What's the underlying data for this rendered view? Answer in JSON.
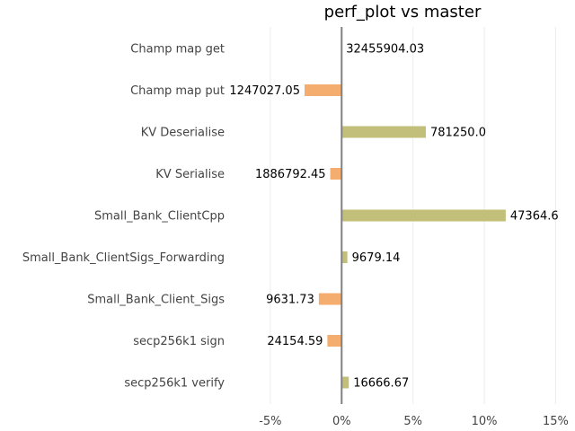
{
  "chart_data": {
    "type": "bar",
    "orientation": "horizontal",
    "title": "perf_plot vs master",
    "categories": [
      "Champ map get",
      "Champ map put",
      "KV Deserialise",
      "KV Serialise",
      "Small_Bank_ClientCpp",
      "Small_Bank_ClientSigs_Forwarding",
      "Small_Bank_Client_Sigs",
      "secp256k1 sign",
      "secp256k1 verify"
    ],
    "values": [
      0.0,
      -2.6,
      5.9,
      -0.8,
      11.5,
      0.4,
      -1.6,
      -1.0,
      0.5
    ],
    "value_labels": [
      "32455904.03",
      "1247027.05",
      "781250.0",
      "1886792.45",
      "47364.6",
      "9679.14",
      "9631.73",
      "24154.59",
      "16666.67"
    ],
    "xticks": [
      "-5%",
      "0%",
      "5%",
      "10%",
      "15%"
    ],
    "xtick_values": [
      -5,
      0,
      5,
      10,
      15
    ],
    "xlim": [
      -6.0,
      15.6
    ],
    "colors": {
      "positive": "#c2bf7a",
      "negative": "#f4ad6e",
      "zero_line": "#808080",
      "grid": "#ececec"
    },
    "grid": true
  }
}
